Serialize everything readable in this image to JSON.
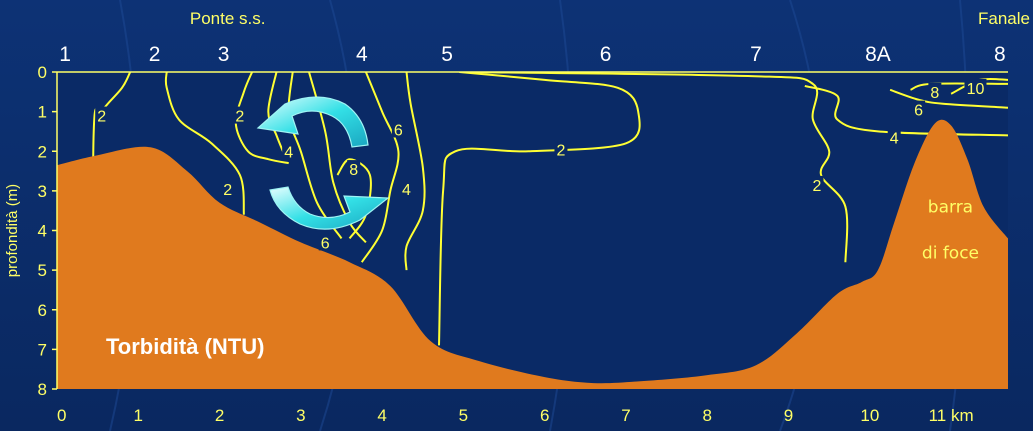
{
  "chart_data": {
    "type": "contour",
    "title": "Torbidità (NTU)",
    "ylabel": "profondità (m)",
    "xlabel_unit": "km",
    "xlim": [
      0,
      11.7
    ],
    "ylim": [
      0,
      8
    ],
    "x_ticks": [
      "0",
      "1",
      "2",
      "3",
      "4",
      "5",
      "6",
      "7",
      "8",
      "9",
      "10",
      "11"
    ],
    "y_ticks": [
      "0",
      "1",
      "2",
      "3",
      "4",
      "5",
      "6",
      "7",
      "8"
    ],
    "stations": [
      {
        "label": "1",
        "x": 0.1
      },
      {
        "label": "2",
        "x": 1.2
      },
      {
        "label": "3",
        "x": 2.05
      },
      {
        "label": "4",
        "x": 3.75
      },
      {
        "label": "5",
        "x": 4.8
      },
      {
        "label": "6",
        "x": 6.75
      },
      {
        "label": "7",
        "x": 8.6
      },
      {
        "label": "8A",
        "x": 10.1
      },
      {
        "label": "8",
        "x": 11.6
      }
    ],
    "top_labels": [
      {
        "text": "Ponte s.s.",
        "x": 2.1
      },
      {
        "text": "Fanale",
        "x": 11.5
      }
    ],
    "bathymetry": [
      [
        0,
        2.35
      ],
      [
        0.5,
        2.1
      ],
      [
        1.15,
        1.9
      ],
      [
        1.6,
        2.5
      ],
      [
        2.0,
        3.3
      ],
      [
        2.5,
        3.8
      ],
      [
        3.0,
        4.3
      ],
      [
        3.6,
        4.8
      ],
      [
        4.1,
        5.4
      ],
      [
        4.6,
        6.8
      ],
      [
        5.2,
        7.3
      ],
      [
        6.0,
        7.7
      ],
      [
        6.6,
        7.85
      ],
      [
        7.2,
        7.8
      ],
      [
        8.0,
        7.65
      ],
      [
        8.6,
        7.4
      ],
      [
        9.1,
        6.6
      ],
      [
        9.6,
        5.6
      ],
      [
        9.9,
        5.3
      ],
      [
        10.1,
        5.0
      ],
      [
        10.3,
        3.8
      ],
      [
        10.55,
        2.3
      ],
      [
        10.8,
        1.3
      ],
      [
        11.0,
        1.35
      ],
      [
        11.2,
        2.2
      ],
      [
        11.4,
        3.4
      ],
      [
        11.7,
        4.2
      ]
    ],
    "isolines": [
      {
        "value": "2",
        "points": [
          [
            0.45,
            8
          ],
          [
            0.45,
            1.6
          ],
          [
            0.55,
            1.0
          ],
          [
            0.8,
            0.4
          ],
          [
            0.9,
            0
          ]
        ]
      },
      {
        "value": "2",
        "points": [
          [
            1.35,
            0
          ],
          [
            1.35,
            0.4
          ],
          [
            1.5,
            1.2
          ],
          [
            1.9,
            1.8
          ],
          [
            2.25,
            2.6
          ],
          [
            2.3,
            3.6
          ]
        ]
      },
      {
        "value": "2",
        "points": [
          [
            2.4,
            0
          ],
          [
            2.3,
            0.5
          ],
          [
            2.2,
            1.3
          ],
          [
            2.35,
            2.0
          ],
          [
            2.6,
            2.2
          ],
          [
            2.85,
            2.3
          ]
        ]
      },
      {
        "value": "2",
        "points": [
          [
            2.7,
            0
          ],
          [
            2.6,
            1.0
          ],
          [
            2.7,
            1.6
          ],
          [
            2.8,
            2.1
          ]
        ]
      },
      {
        "value": "4",
        "points": [
          [
            2.9,
            0
          ],
          [
            2.85,
            1.1
          ],
          [
            3.0,
            2.0
          ],
          [
            3.2,
            3.3
          ],
          [
            3.5,
            4.2
          ]
        ]
      },
      {
        "value": "6",
        "points": [
          [
            3.1,
            0
          ],
          [
            3.3,
            1.5
          ],
          [
            3.4,
            2.8
          ],
          [
            3.6,
            3.8
          ],
          [
            3.8,
            4.3
          ]
        ]
      },
      {
        "value": "8",
        "points": [
          [
            3.45,
            2.6
          ],
          [
            3.6,
            2.2
          ],
          [
            3.85,
            2.6
          ],
          [
            3.8,
            3.6
          ],
          [
            3.6,
            4.2
          ]
        ]
      },
      {
        "value": "6",
        "points": [
          [
            3.8,
            0
          ],
          [
            4.0,
            1.0
          ],
          [
            4.2,
            2.0
          ],
          [
            4.1,
            3.0
          ],
          [
            4.0,
            4.0
          ],
          [
            3.75,
            4.8
          ]
        ]
      },
      {
        "value": "4",
        "points": [
          [
            4.3,
            0
          ],
          [
            4.35,
            0.8
          ],
          [
            4.5,
            2.4
          ],
          [
            4.5,
            3.5
          ],
          [
            4.3,
            4.4
          ],
          [
            4.3,
            5.0
          ]
        ]
      },
      {
        "value": "2",
        "points": [
          [
            4.7,
            6.9
          ],
          [
            4.75,
            3.0
          ],
          [
            4.9,
            2.0
          ],
          [
            5.8,
            2.0
          ],
          [
            7.0,
            1.8
          ],
          [
            7.15,
            1.0
          ],
          [
            6.9,
            0.4
          ],
          [
            6.0,
            0.2
          ],
          [
            4.95,
            0
          ]
        ]
      },
      {
        "value": "2",
        "points": [
          [
            5.0,
            0
          ],
          [
            8.5,
            0.1
          ],
          [
            9.3,
            0.3
          ],
          [
            9.3,
            1.2
          ],
          [
            9.5,
            2.0
          ],
          [
            9.4,
            2.6
          ],
          [
            9.7,
            3.4
          ],
          [
            9.7,
            4.8
          ]
        ]
      },
      {
        "value": "4",
        "points": [
          [
            9.2,
            0.35
          ],
          [
            9.6,
            0.6
          ],
          [
            9.6,
            1.2
          ],
          [
            10.1,
            1.5
          ],
          [
            11.7,
            1.6
          ]
        ]
      },
      {
        "value": "6",
        "points": [
          [
            10.25,
            0.45
          ],
          [
            10.6,
            0.7
          ],
          [
            10.9,
            0.8
          ],
          [
            11.7,
            0.9
          ]
        ]
      },
      {
        "value": "8",
        "points": [
          [
            10.5,
            0.45
          ],
          [
            10.75,
            0.3
          ],
          [
            11.7,
            0.3
          ]
        ]
      },
      {
        "value": "10",
        "points": [
          [
            11.0,
            0.55
          ],
          [
            11.35,
            0.2
          ],
          [
            11.7,
            0.2
          ]
        ]
      }
    ],
    "iso_labels": [
      {
        "text": "2",
        "x": 0.55,
        "y": 1.1
      },
      {
        "text": "2",
        "x": 2.25,
        "y": 1.1
      },
      {
        "text": "4",
        "x": 2.85,
        "y": 2.0
      },
      {
        "text": "2",
        "x": 2.1,
        "y": 2.95
      },
      {
        "text": "6",
        "x": 4.2,
        "y": 1.45
      },
      {
        "text": "8",
        "x": 3.65,
        "y": 2.45
      },
      {
        "text": "4",
        "x": 4.3,
        "y": 2.95
      },
      {
        "text": "6",
        "x": 3.3,
        "y": 4.3
      },
      {
        "text": "2",
        "x": 6.2,
        "y": 1.95
      },
      {
        "text": "2",
        "x": 9.35,
        "y": 2.85
      },
      {
        "text": "4",
        "x": 10.3,
        "y": 1.65
      },
      {
        "text": "6",
        "x": 10.6,
        "y": 0.95
      },
      {
        "text": "8",
        "x": 10.8,
        "y": 0.5
      },
      {
        "text": "10",
        "x": 11.3,
        "y": 0.4
      }
    ],
    "annotations": [
      {
        "text": "barra",
        "x": 10.5,
        "y": 3.4
      },
      {
        "text": "di foce",
        "x": 10.5,
        "y": 4.55
      }
    ],
    "colors": {
      "background": "#0b2c66",
      "ground": "#e07a1e",
      "isoline": "#ffff33",
      "arrow": "#33e6e6"
    }
  }
}
